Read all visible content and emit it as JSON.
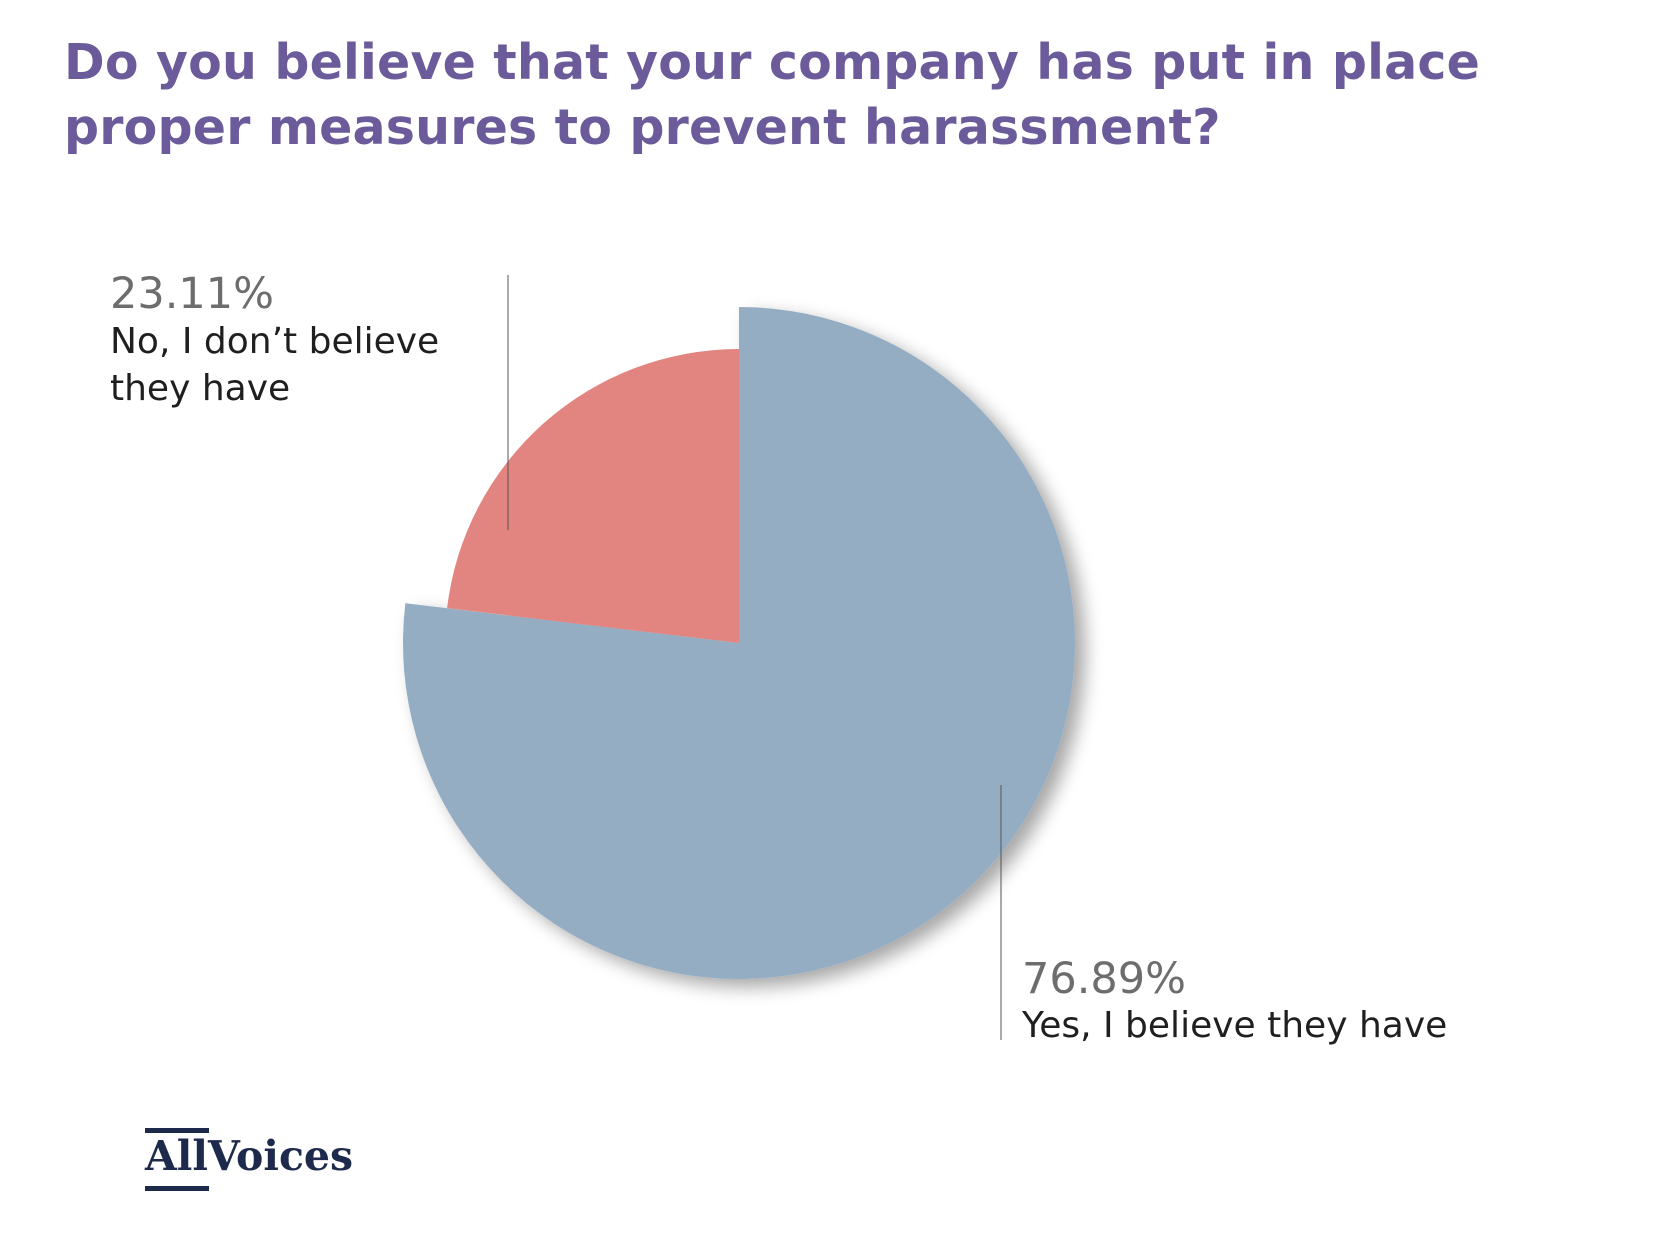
{
  "title": "Do you believe that your company has put in place proper measures to prevent harassment?",
  "colors": {
    "title": "#6b5b9a",
    "yes": "#95adc3",
    "no": "#e2847f",
    "percent_text": "#6d6d6d",
    "label_text": "#1f1f1f",
    "logo": "#1d2a4c"
  },
  "labels": {
    "no": {
      "percent": "23.11%",
      "line1": "No, I don’t believe",
      "line2": "they have"
    },
    "yes": {
      "percent": "76.89%",
      "line1": "Yes, I believe they have"
    }
  },
  "logo": {
    "part1": "All",
    "part2": "Voices"
  },
  "chart_data": {
    "type": "pie",
    "title": "Do you believe that your company has put in place proper measures to prevent harassment?",
    "slices": [
      {
        "label": "No, I don’t believe they have",
        "value": 23.11,
        "color": "#e2847f"
      },
      {
        "label": "Yes, I believe they have",
        "value": 76.89,
        "color": "#95adc3"
      }
    ],
    "start_angle": "12 o'clock",
    "direction": "clockwise",
    "exploded": "Yes, I believe they have",
    "legend": "none"
  }
}
